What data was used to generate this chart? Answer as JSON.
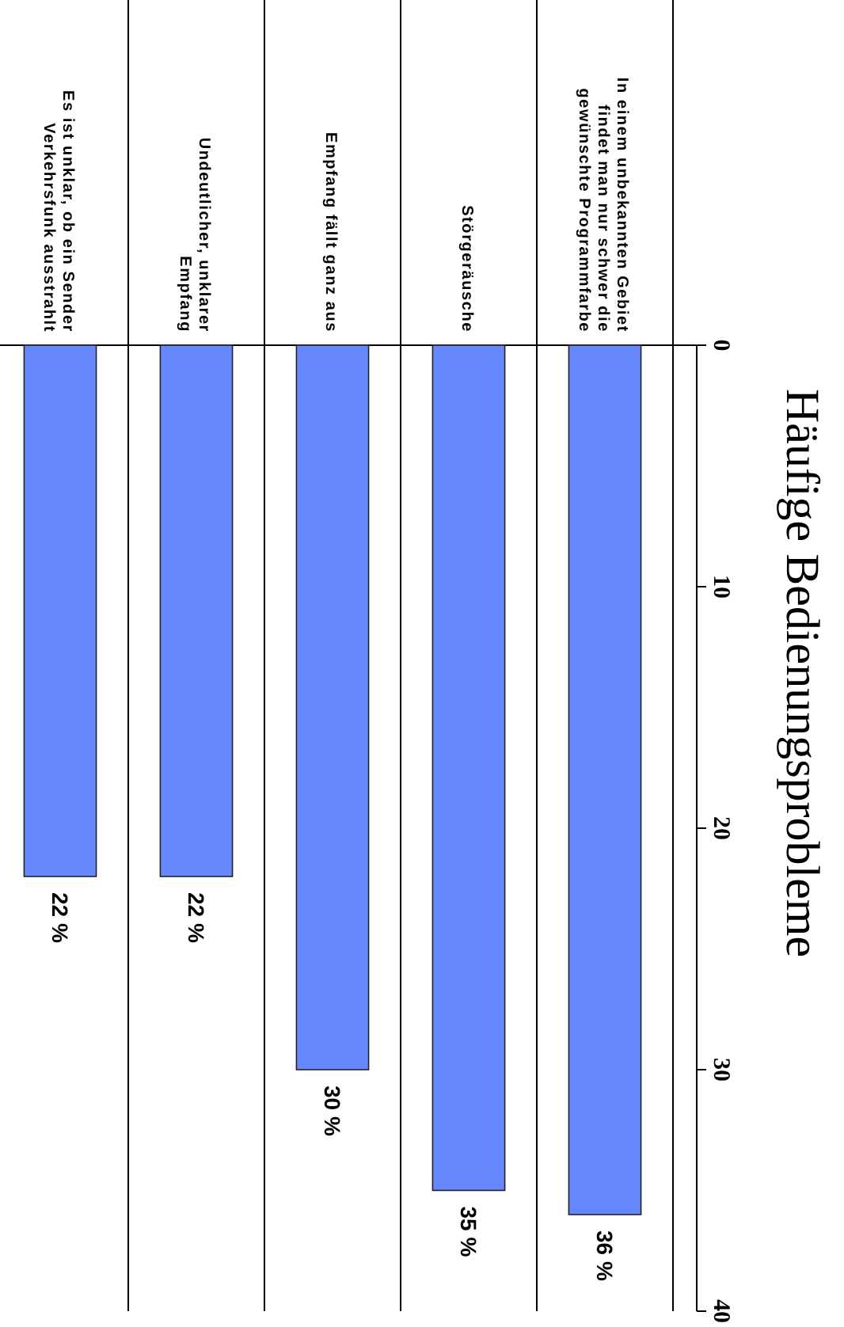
{
  "chart_data": {
    "type": "bar",
    "title": "Häufige Bedienungsprobleme",
    "categories": [
      "Es ist unklar, ob ein Sender Verkehrsfunk ausstrahlt",
      "Undeutlicher, unklarer Empfang",
      "Empfang fällt ganz aus",
      "Störgeräusche",
      "In einem unbekannten Gebiet findet man nur schwer die gewünschte Programmfarbe"
    ],
    "values": [
      22,
      22,
      30,
      35,
      36
    ],
    "value_labels": [
      "22 %",
      "22 %",
      "30 %",
      "35 %",
      "36 %"
    ],
    "color": "#6688ff",
    "ylim": [
      40,
      0
    ],
    "yticks": [
      0,
      10,
      20,
      30,
      40
    ]
  }
}
